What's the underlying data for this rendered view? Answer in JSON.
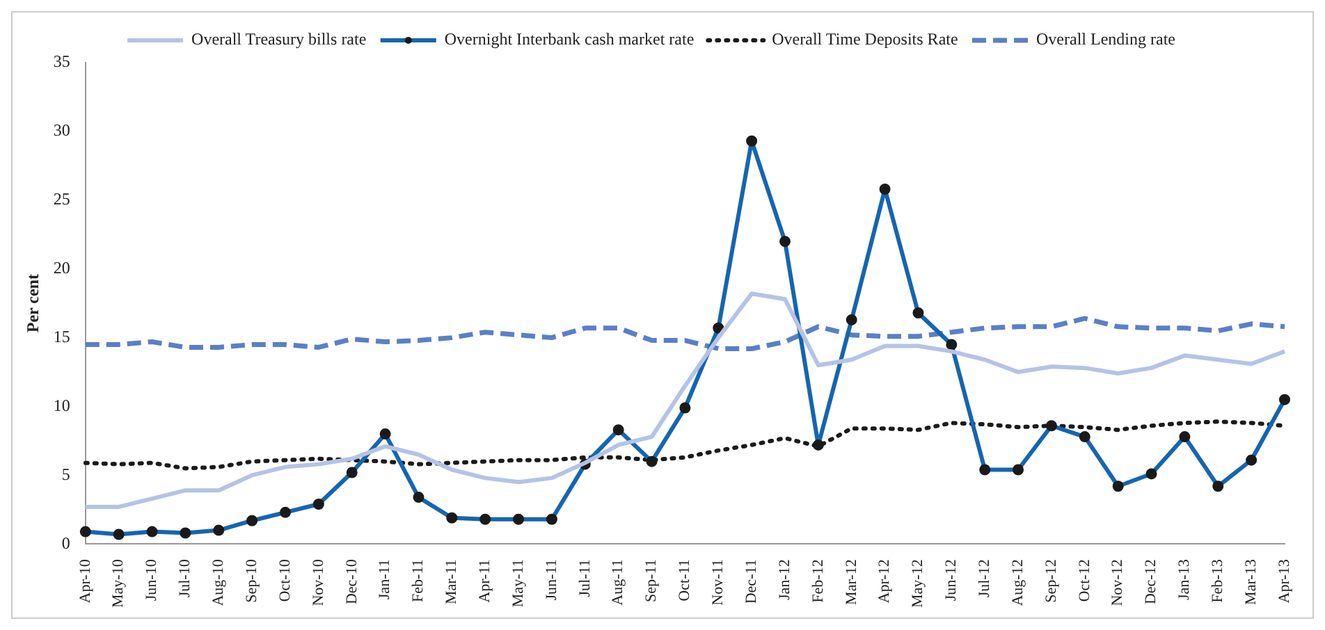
{
  "chart_data": {
    "type": "line",
    "ylabel": "Per cent",
    "categories": [
      "Apr-10",
      "May-10",
      "Jun-10",
      "Jul-10",
      "Aug-10",
      "Sep-10",
      "Oct-10",
      "Nov-10",
      "Dec-10",
      "Jan-11",
      "Feb-11",
      "Mar-11",
      "Apr-11",
      "May-11",
      "Jun-11",
      "Jul-11",
      "Aug-11",
      "Sep-11",
      "Oct-11",
      "Nov-11",
      "Dec-11",
      "Jan-12",
      "Feb-12",
      "Mar-12",
      "Apr-12",
      "May-12",
      "Jun-12",
      "Jul-12",
      "Aug-12",
      "Sep-12",
      "Oct-12",
      "Nov-12",
      "Dec-12",
      "Jan-13",
      "Feb-13",
      "Mar-13",
      "Apr-13"
    ],
    "series": [
      {
        "name": "Overall Treasury bills rate",
        "color": "#b4c3e6",
        "line_style": "solid",
        "marker": "none",
        "values": [
          2.7,
          2.7,
          3.3,
          3.9,
          3.9,
          5.0,
          5.6,
          5.8,
          6.2,
          7.1,
          6.5,
          5.4,
          4.8,
          4.5,
          4.8,
          5.9,
          7.2,
          7.8,
          11.5,
          15.0,
          18.2,
          17.8,
          13.0,
          13.4,
          14.4,
          14.4,
          14.0,
          13.4,
          12.5,
          12.9,
          12.8,
          12.4,
          12.8,
          13.7,
          13.4,
          13.1,
          14.0
        ]
      },
      {
        "name": "Overnight Interbank cash market rate",
        "color": "#1565b0",
        "line_style": "solid",
        "marker": "circle",
        "values": [
          0.9,
          0.7,
          0.9,
          0.8,
          1.0,
          1.7,
          2.3,
          2.9,
          5.2,
          8.0,
          3.4,
          1.9,
          1.8,
          1.8,
          1.8,
          5.8,
          8.3,
          6.0,
          9.9,
          15.7,
          29.3,
          22.0,
          7.2,
          16.3,
          25.8,
          16.8,
          14.5,
          5.4,
          5.4,
          8.6,
          7.8,
          4.2,
          5.1,
          7.8,
          4.2,
          6.1,
          10.5
        ]
      },
      {
        "name": "Overall Time Deposits Rate",
        "color": "#1a1a1a",
        "line_style": "dotted",
        "marker": "none",
        "values": [
          5.9,
          5.8,
          5.9,
          5.5,
          5.6,
          6.0,
          6.1,
          6.2,
          6.1,
          6.0,
          5.8,
          5.9,
          6.0,
          6.1,
          6.1,
          6.3,
          6.3,
          6.1,
          6.3,
          6.8,
          7.2,
          7.7,
          7.1,
          8.4,
          8.4,
          8.3,
          8.8,
          8.7,
          8.5,
          8.6,
          8.5,
          8.3,
          8.6,
          8.8,
          8.9,
          8.8,
          8.6
        ]
      },
      {
        "name": "Overall Lending rate",
        "color": "#5b7fc7",
        "line_style": "dashed",
        "marker": "none",
        "values": [
          14.5,
          14.5,
          14.7,
          14.3,
          14.3,
          14.5,
          14.5,
          14.3,
          14.9,
          14.7,
          14.8,
          15.0,
          15.4,
          15.2,
          15.0,
          15.7,
          15.7,
          14.8,
          14.8,
          14.2,
          14.2,
          14.7,
          15.8,
          15.2,
          15.1,
          15.1,
          15.4,
          15.7,
          15.8,
          15.8,
          16.4,
          15.8,
          15.7,
          15.7,
          15.5,
          16.0,
          15.8
        ]
      }
    ],
    "ylim": [
      0,
      35
    ],
    "yticks": [
      0,
      5,
      10,
      15,
      20,
      25,
      30,
      35
    ],
    "grid": false,
    "legend": "top"
  }
}
